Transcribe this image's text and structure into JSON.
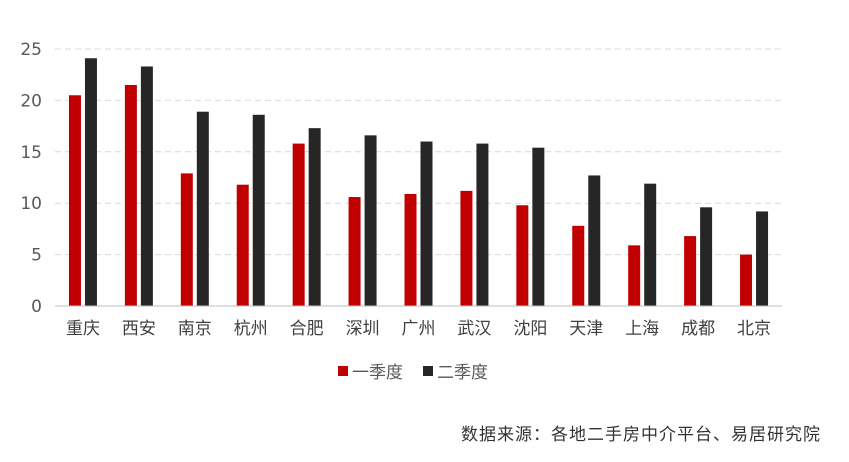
{
  "chart_data": {
    "type": "bar",
    "categories": [
      "重庆",
      "西安",
      "南京",
      "杭州",
      "合肥",
      "深圳",
      "广州",
      "武汉",
      "沈阳",
      "天津",
      "上海",
      "成都",
      "北京"
    ],
    "series": [
      {
        "name": "一季度",
        "color": "#c00000",
        "values": [
          20.5,
          21.5,
          12.9,
          11.8,
          15.8,
          10.6,
          10.9,
          11.2,
          9.8,
          7.8,
          5.9,
          6.8,
          5.0
        ]
      },
      {
        "name": "二季度",
        "color": "#262626",
        "values": [
          24.1,
          23.3,
          18.9,
          18.6,
          17.3,
          16.6,
          16.0,
          15.8,
          15.4,
          12.7,
          11.9,
          9.6,
          9.2
        ]
      }
    ],
    "yticks": [
      0,
      5,
      10,
      15,
      20,
      25
    ],
    "ylim": [
      0,
      25
    ],
    "grid": true,
    "legend_position": "bottom"
  },
  "source_text": "数据来源：各地二手房中介平台、易居研究院"
}
